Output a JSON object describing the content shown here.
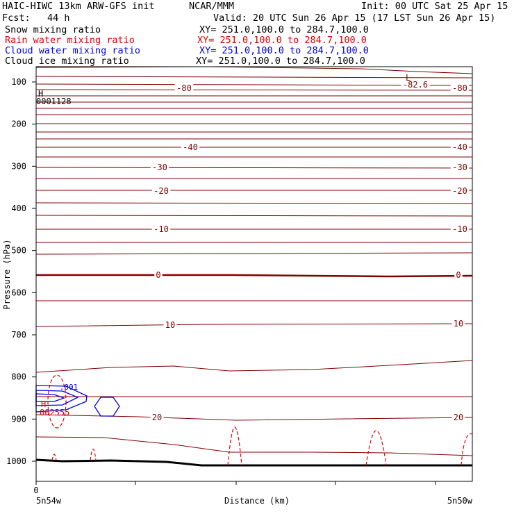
{
  "header": {
    "title_left": "HAIC-HIWC 13km ARW-GFS init",
    "org": "NCAR/MMM",
    "init": "Init: 00 UTC Sat 25 Apr 15",
    "fcst": "Fcst:   44 h",
    "valid": "Valid: 20 UTC Sun 26 Apr 15 (17 LST Sun 26 Apr 15)",
    "fields": [
      {
        "name": "Snow mixing ratio",
        "xy": "XY= 251.0,100.0 to 284.7,100.0",
        "color": "#000000"
      },
      {
        "name": "Rain water mixing ratio",
        "xy": "XY= 251.0,100.0 to 284.7,100.0",
        "color": "#e00000"
      },
      {
        "name": "Cloud water mixing ratio",
        "xy": "XY= 251.0,100.0 to 284.7,100.0",
        "color": "#0000e0"
      },
      {
        "name": "Cloud ice mixing ratio",
        "xy": "XY= 251.0,100.0 to 284.7,100.0",
        "color": "#000000"
      }
    ]
  },
  "chart_data": {
    "type": "line",
    "xlabel": "Distance (km)",
    "ylabel": "Pressure (hPa)",
    "x_tick_label": "0",
    "x_end_labels": [
      "5n54w",
      "5n50w"
    ],
    "yticks": [
      100,
      200,
      300,
      400,
      500,
      600,
      700,
      800,
      900,
      1000
    ],
    "ylim": [
      1050,
      50
    ],
    "temperature_labels": [
      "-80",
      "-82.6",
      "-80",
      "-40",
      "-40",
      "-30",
      "-30",
      "-20",
      "-20",
      "-10",
      "-10",
      "0",
      "0",
      "10",
      "10",
      "20",
      "20"
    ],
    "extrema": [
      {
        "kind": "H",
        "value": "0001128"
      },
      {
        "kind": "L",
        "value": ""
      },
      {
        "kind": "H",
        "value": "002555"
      }
    ],
    "cloud_water_label": ".001",
    "colors": {
      "temperature": "#800000",
      "rain": "#e00000",
      "cloud": "#0000e0",
      "terrain": "#000000"
    }
  }
}
